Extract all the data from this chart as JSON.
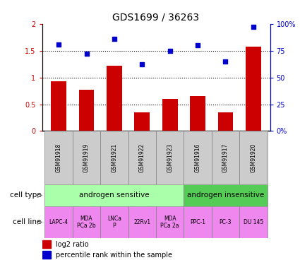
{
  "title": "GDS1699 / 36263",
  "samples": [
    "GSM91918",
    "GSM91919",
    "GSM91921",
    "GSM91922",
    "GSM91923",
    "GSM91916",
    "GSM91917",
    "GSM91920"
  ],
  "log2_ratio": [
    0.93,
    0.77,
    1.22,
    0.35,
    0.6,
    0.65,
    0.35,
    1.58
  ],
  "percentile_rank": [
    81,
    72,
    86,
    62,
    75,
    80,
    65,
    97
  ],
  "bar_color": "#cc0000",
  "dot_color": "#0000cc",
  "cell_type_groups": [
    {
      "label": "androgen sensitive",
      "start": 0,
      "end": 4,
      "color": "#aaffaa"
    },
    {
      "label": "androgen insensitive",
      "start": 5,
      "end": 7,
      "color": "#55cc55"
    }
  ],
  "cell_lines": [
    {
      "label": "LAPC-4",
      "sample_idx": 0
    },
    {
      "label": "MDA\nPCa 2b",
      "sample_idx": 1
    },
    {
      "label": "LNCa\nP",
      "sample_idx": 2
    },
    {
      "label": "22Rv1",
      "sample_idx": 3
    },
    {
      "label": "MDA\nPCa 2a",
      "sample_idx": 4
    },
    {
      "label": "PPC-1",
      "sample_idx": 5
    },
    {
      "label": "PC-3",
      "sample_idx": 6
    },
    {
      "label": "DU 145",
      "sample_idx": 7
    }
  ],
  "cell_line_color": "#ee88ee",
  "ylim_left": [
    0,
    2
  ],
  "ylim_right": [
    0,
    100
  ],
  "yticks_left": [
    0,
    0.5,
    1.0,
    1.5,
    2.0
  ],
  "ytick_labels_left": [
    "0",
    "0.5",
    "1",
    "1.5",
    "2"
  ],
  "yticks_right": [
    0,
    25,
    50,
    75,
    100
  ],
  "ytick_labels_right": [
    "0%",
    "25",
    "50",
    "75",
    "100%"
  ],
  "hlines": [
    0.5,
    1.0,
    1.5
  ],
  "legend_red_label": "log2 ratio",
  "legend_blue_label": "percentile rank within the sample",
  "cell_type_label": "cell type",
  "cell_line_label": "cell line",
  "sample_box_color": "#cccccc",
  "figsize": [
    4.25,
    3.75
  ],
  "dpi": 100
}
